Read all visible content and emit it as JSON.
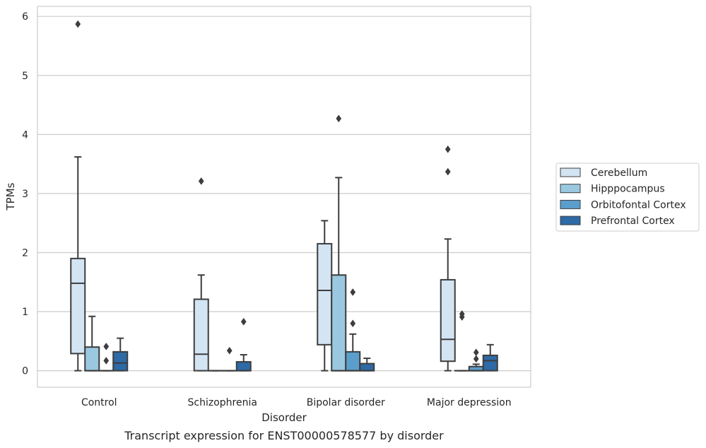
{
  "chart_data": {
    "type": "box",
    "caption": "Transcript expression for ENST00000578577 by disorder",
    "xlabel": "Disorder",
    "ylabel": "TPMs",
    "ylim": [
      -0.28,
      6.17
    ],
    "yticks": [
      0,
      1,
      2,
      3,
      4,
      5,
      6
    ],
    "grid": true,
    "legend_position": "right",
    "categories": [
      "Control",
      "Schizophrenia",
      "Bipolar disorder",
      "Major depression"
    ],
    "series": [
      {
        "name": "Cerebellum",
        "color": "#d3e4f3",
        "boxes": [
          {
            "whislo": 0,
            "q1": 0.29,
            "med": 1.48,
            "q3": 1.9,
            "whishi": 3.62,
            "fliers": [
              5.87
            ]
          },
          {
            "whislo": 0,
            "q1": 0,
            "med": 0.28,
            "q3": 1.21,
            "whishi": 1.62,
            "fliers": [
              3.21
            ]
          },
          {
            "whislo": 0,
            "q1": 0.44,
            "med": 1.36,
            "q3": 2.15,
            "whishi": 2.54,
            "fliers": []
          },
          {
            "whislo": 0,
            "q1": 0.16,
            "med": 0.53,
            "q3": 1.54,
            "whishi": 2.23,
            "fliers": [
              3.75,
              3.37
            ]
          }
        ]
      },
      {
        "name": "Hipppocampus",
        "color": "#9ac8e0",
        "boxes": [
          {
            "whislo": 0,
            "q1": 0,
            "med": 0,
            "q3": 0.4,
            "whishi": 0.92,
            "fliers": []
          },
          {
            "whislo": 0,
            "q1": 0,
            "med": 0,
            "q3": 0,
            "whishi": 0,
            "fliers": []
          },
          {
            "whislo": 0,
            "q1": 0,
            "med": 0,
            "q3": 1.62,
            "whishi": 3.27,
            "fliers": [
              4.27
            ]
          },
          {
            "whislo": 0,
            "q1": 0,
            "med": 0,
            "q3": 0,
            "whishi": 0,
            "fliers": [
              0.96,
              0.91
            ]
          }
        ]
      },
      {
        "name": "Orbitofontal Cortex",
        "color": "#5b9ecc",
        "boxes": [
          {
            "whislo": 0,
            "q1": 0,
            "med": 0,
            "q3": 0,
            "whishi": 0,
            "fliers": [
              0.41,
              0.17
            ]
          },
          {
            "whislo": 0,
            "q1": 0,
            "med": 0,
            "q3": 0,
            "whishi": 0,
            "fliers": [
              0.34
            ]
          },
          {
            "whislo": 0,
            "q1": 0,
            "med": 0,
            "q3": 0.32,
            "whishi": 0.62,
            "fliers": [
              1.33,
              0.8
            ]
          },
          {
            "whislo": 0,
            "q1": 0,
            "med": 0,
            "q3": 0.07,
            "whishi": 0.11,
            "fliers": [
              0.31,
              0.2
            ]
          }
        ]
      },
      {
        "name": "Prefrontal Cortex",
        "color": "#2d6aa6",
        "boxes": [
          {
            "whislo": 0,
            "q1": 0,
            "med": 0.13,
            "q3": 0.32,
            "whishi": 0.55,
            "fliers": []
          },
          {
            "whislo": 0,
            "q1": 0,
            "med": 0,
            "q3": 0.15,
            "whishi": 0.27,
            "fliers": [
              0.83
            ]
          },
          {
            "whislo": 0,
            "q1": 0,
            "med": 0,
            "q3": 0.12,
            "whishi": 0.21,
            "fliers": []
          },
          {
            "whislo": 0,
            "q1": 0,
            "med": 0.17,
            "q3": 0.26,
            "whishi": 0.44,
            "fliers": []
          }
        ]
      }
    ]
  }
}
